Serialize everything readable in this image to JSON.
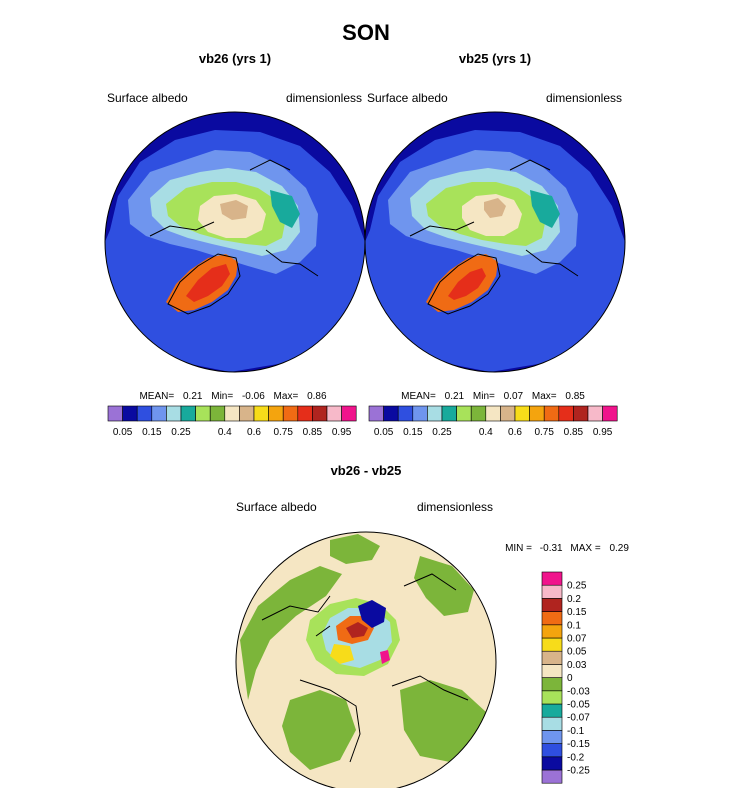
{
  "title": "SON",
  "palettes": {
    "albedo": [
      "#9b72d6",
      "#0a0aa0",
      "#2f4fe0",
      "#6f95ee",
      "#a8dde4",
      "#18aa9c",
      "#a8e25a",
      "#7cb53a",
      "#f5e6c3",
      "#d8b48a",
      "#f7dc1a",
      "#f4a40e",
      "#f06b14",
      "#e52e1a",
      "#b0241f",
      "#f7b9c9",
      "#f0148c"
    ],
    "diff": [
      "#9b72d6",
      "#0a0aa0",
      "#2f4fe0",
      "#6f95ee",
      "#a8dde4",
      "#18aa9c",
      "#a8e25a",
      "#7cb53a",
      "#f5e6c3",
      "#d8b48a",
      "#f7dc1a",
      "#f4a40e",
      "#f06b14",
      "#b0241f",
      "#f7b9c9",
      "#f0148c"
    ]
  },
  "chart_data": [
    {
      "type": "heatmap",
      "projection": "north-polar-stereographic",
      "title": "vb26 (yrs 1)",
      "left_label": "Surface albedo",
      "right_label": "dimensionless",
      "stats": {
        "mean_label": "MEAN=",
        "mean": "0.21",
        "min_label": "Min=",
        "min": "-0.06",
        "max_label": "Max=",
        "max": "0.86"
      },
      "colorbar": {
        "orientation": "horizontal",
        "levels": [
          0.05,
          0.1,
          0.15,
          0.2,
          0.25,
          0.3,
          0.35,
          0.4,
          0.5,
          0.6,
          0.7,
          0.75,
          0.8,
          0.85,
          0.9,
          0.95
        ],
        "tick_labels": [
          "0.05",
          "0.15",
          "0.25",
          "0.4",
          "0.6",
          "0.75",
          "0.85",
          "0.95"
        ]
      }
    },
    {
      "type": "heatmap",
      "projection": "north-polar-stereographic",
      "title": "vb25 (yrs 1)",
      "left_label": "Surface albedo",
      "right_label": "dimensionless",
      "stats": {
        "mean_label": "MEAN=",
        "mean": "0.21",
        "min_label": "Min=",
        "min": "0.07",
        "max_label": "Max=",
        "max": "0.85"
      },
      "colorbar": {
        "orientation": "horizontal",
        "levels": [
          0.05,
          0.1,
          0.15,
          0.2,
          0.25,
          0.3,
          0.35,
          0.4,
          0.5,
          0.6,
          0.7,
          0.75,
          0.8,
          0.85,
          0.9,
          0.95
        ],
        "tick_labels": [
          "0.05",
          "0.15",
          "0.25",
          "0.4",
          "0.6",
          "0.75",
          "0.85",
          "0.95"
        ]
      }
    },
    {
      "type": "heatmap",
      "projection": "north-polar-stereographic",
      "title": "vb26 - vb25",
      "left_label": "Surface albedo",
      "right_label": "dimensionless",
      "stats": {
        "min_label": "MIN =",
        "min": "-0.31",
        "max_label": "MAX =",
        "max": "0.29"
      },
      "colorbar": {
        "orientation": "vertical",
        "levels": [
          -0.25,
          -0.2,
          -0.15,
          -0.1,
          -0.07,
          -0.05,
          -0.03,
          0,
          0.03,
          0.05,
          0.07,
          0.1,
          0.15,
          0.2,
          0.25
        ],
        "tick_labels": [
          "-0.25",
          "-0.2",
          "-0.15",
          "-0.1",
          "-0.07",
          "-0.05",
          "-0.03",
          "0",
          "0.03",
          "0.05",
          "0.07",
          "0.1",
          "0.15",
          "0.2",
          "0.25"
        ]
      }
    }
  ]
}
